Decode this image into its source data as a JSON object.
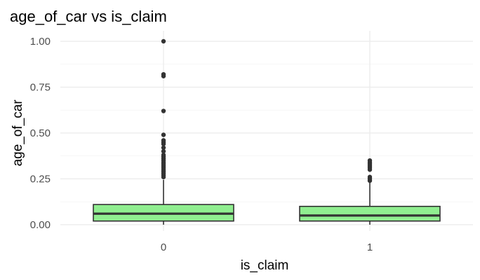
{
  "chart_data": {
    "type": "boxplot",
    "title": "age_of_car vs is_claim",
    "xlabel": "is_claim",
    "ylabel": "age_of_car",
    "categories": [
      "0",
      "1"
    ],
    "ylim": [
      -0.03,
      1.04
    ],
    "yticks": [
      0.0,
      0.25,
      0.5,
      0.75,
      1.0
    ],
    "ytick_labels": [
      "0.00",
      "0.25",
      "0.50",
      "0.75",
      "1.00"
    ],
    "grid": true,
    "legend": "none",
    "box_fill": "#90ee90",
    "box_stroke": "#333333",
    "outlier_color": "#333333",
    "boxes": [
      {
        "category": "0",
        "whisker_low": 0.0,
        "q1": 0.02,
        "median": 0.06,
        "q3": 0.11,
        "whisker_high": 0.245,
        "outliers": [
          0.26,
          0.27,
          0.28,
          0.29,
          0.3,
          0.31,
          0.32,
          0.33,
          0.34,
          0.35,
          0.36,
          0.37,
          0.38,
          0.4,
          0.42,
          0.44,
          0.45,
          0.46,
          0.49,
          0.62,
          0.81,
          0.82,
          1.0
        ]
      },
      {
        "category": "1",
        "whisker_low": 0.0,
        "q1": 0.02,
        "median": 0.05,
        "q3": 0.1,
        "whisker_high": 0.23,
        "outliers": [
          0.24,
          0.25,
          0.26,
          0.3,
          0.31,
          0.32,
          0.33,
          0.34,
          0.35
        ]
      }
    ]
  }
}
